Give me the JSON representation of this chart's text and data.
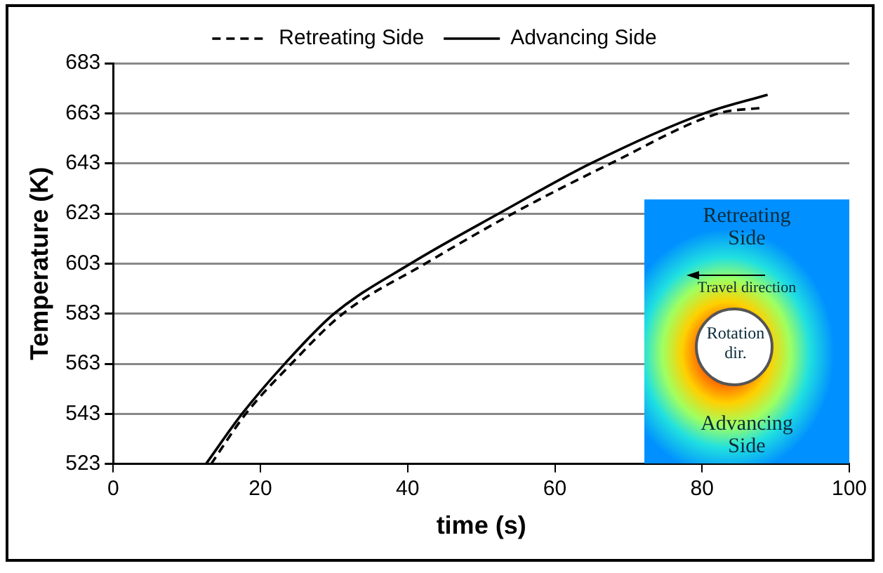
{
  "chart_data": {
    "type": "line",
    "xlabel": "time (s)",
    "ylabel": "Temperature (K)",
    "xlim": [
      0,
      100
    ],
    "xticks": [
      0,
      20,
      40,
      60,
      80,
      100
    ],
    "ylim": [
      523,
      683
    ],
    "yticks": [
      523,
      543,
      563,
      583,
      603,
      623,
      643,
      663,
      683
    ],
    "grid": "y",
    "legend": "top",
    "marker": "none",
    "series": [
      {
        "name": "Retreating Side",
        "color": "#000000",
        "line_style": "dashed",
        "x": [
          13.3,
          18,
          24.2,
          31.2,
          42.4,
          54.3,
          67.6,
          82.3,
          88.2
        ],
        "values": [
          523,
          543,
          563,
          583,
          603,
          623,
          643,
          663,
          665.2
        ]
      },
      {
        "name": "Advancing Side",
        "color": "#000000",
        "line_style": "solid",
        "x": [
          12.6,
          17.5,
          23.3,
          30,
          40.4,
          52.4,
          64.9,
          80.3,
          88.9
        ],
        "values": [
          523,
          543,
          563,
          583,
          603,
          623,
          643,
          663,
          670.4
        ]
      }
    ],
    "annotations": [
      "Retreating Side",
      "Travel direction",
      "Rotation dir.",
      "Advancing Side"
    ]
  }
}
